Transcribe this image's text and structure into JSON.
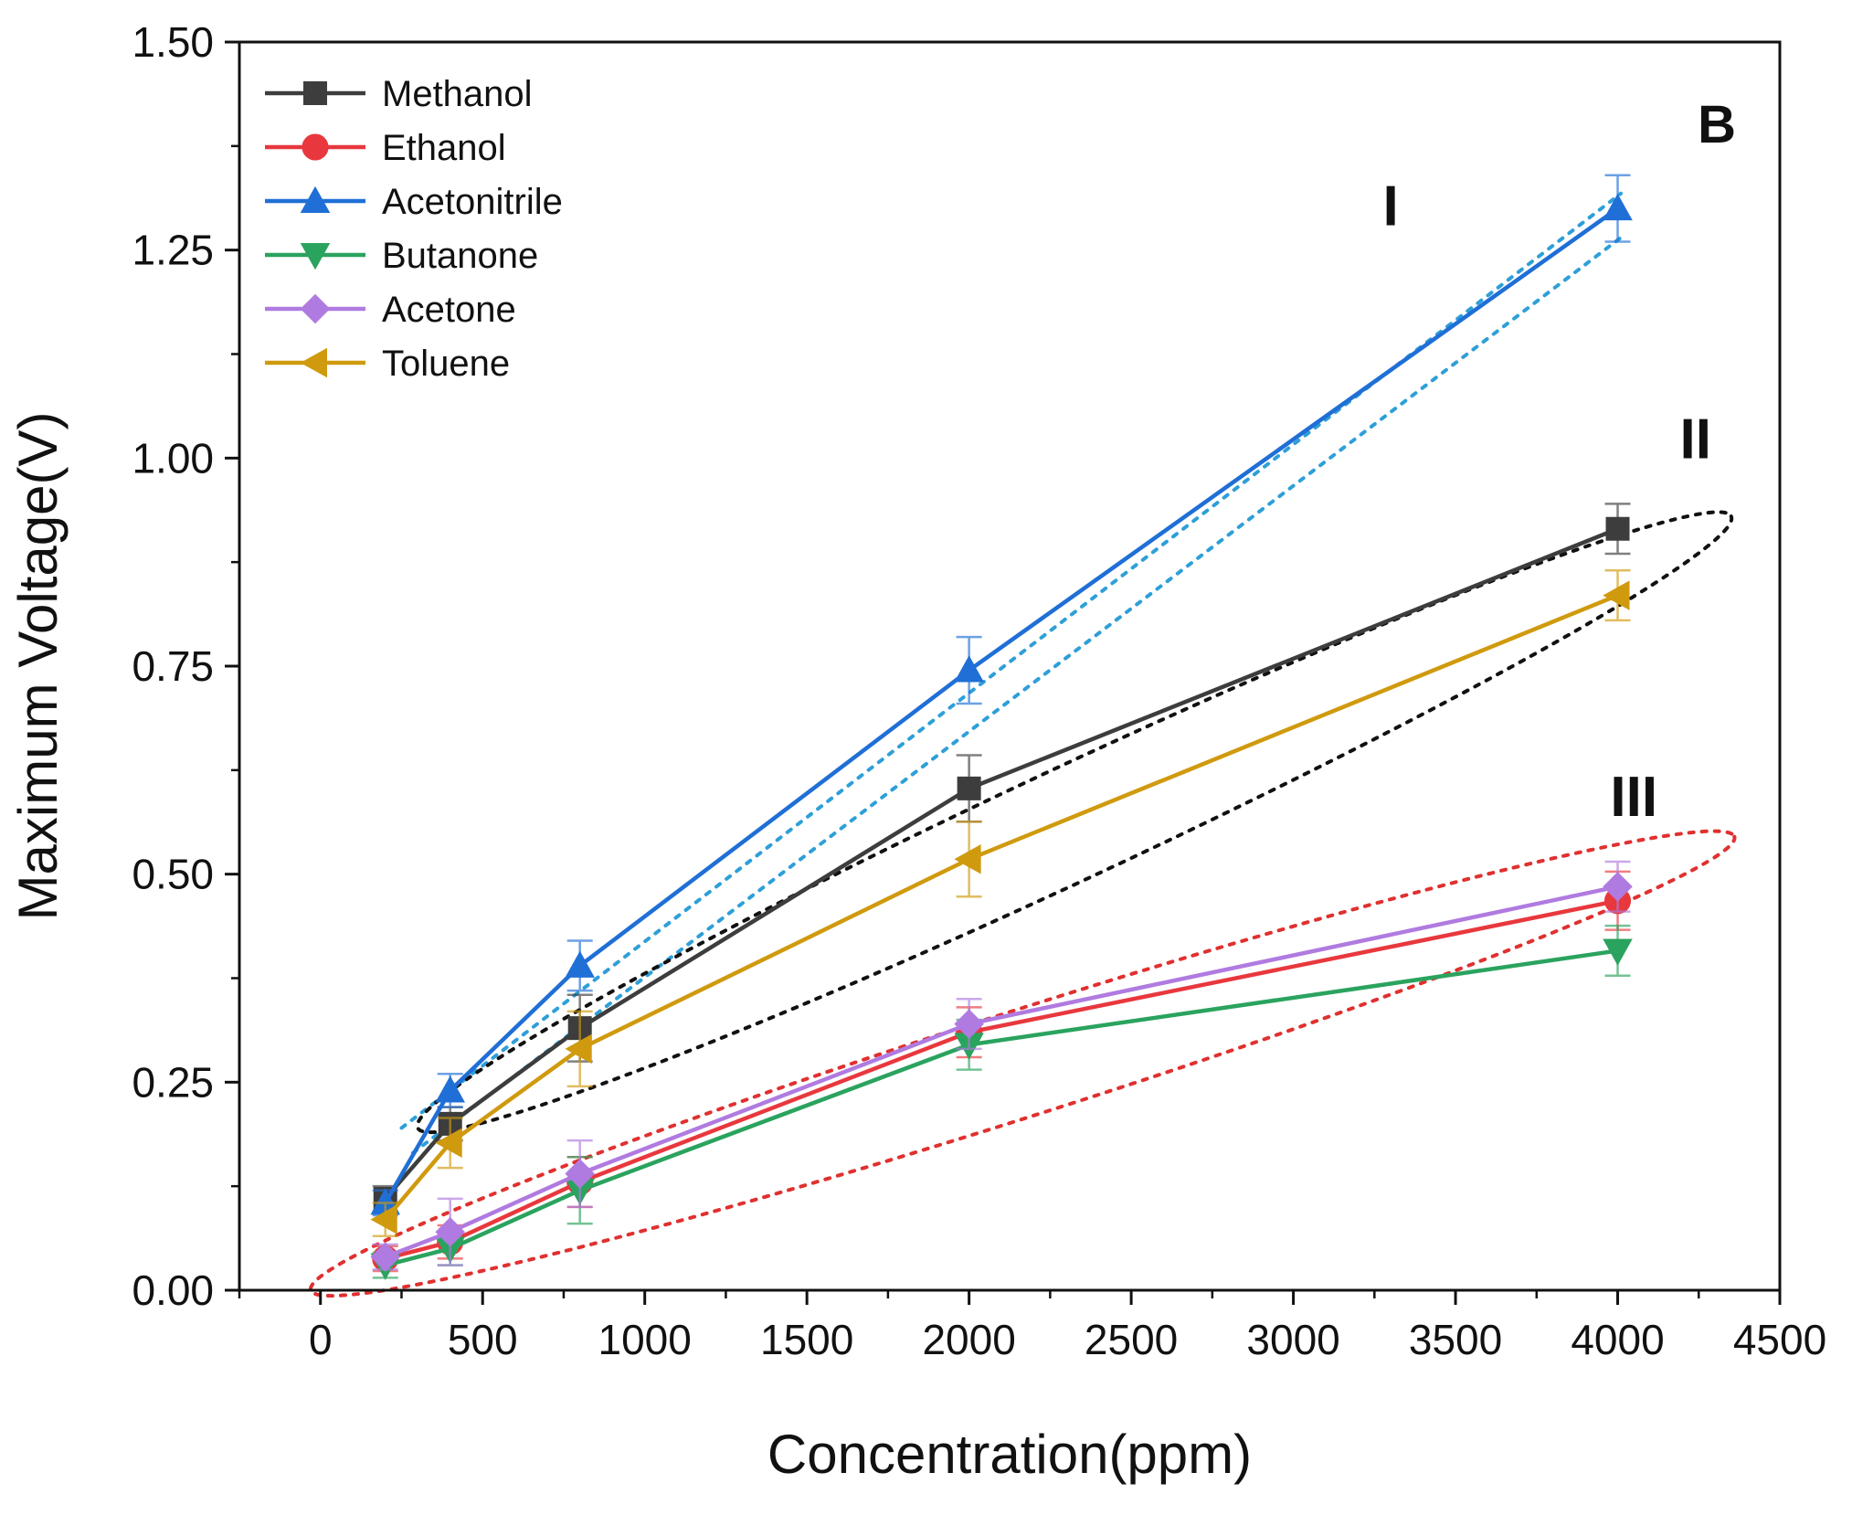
{
  "chart_data": {
    "type": "line",
    "panel_label": "B",
    "xlabel": "Concentration(ppm)",
    "ylabel": "Maximum Voltage(V)",
    "xlim": [
      -250,
      4500
    ],
    "ylim": [
      0,
      1.5
    ],
    "x_ticks": [
      0,
      500,
      1000,
      1500,
      2000,
      2500,
      3000,
      3500,
      4000,
      4500
    ],
    "x_tick_labels": [
      "0",
      "500",
      "1000",
      "1500",
      "2000",
      "2500",
      "3000",
      "3500",
      "4000",
      "4500"
    ],
    "y_ticks": [
      0,
      0.25,
      0.5,
      0.75,
      1.0,
      1.25,
      1.5
    ],
    "y_tick_labels": [
      "0.00",
      "0.25",
      "0.50",
      "0.75",
      "1.00",
      "1.25",
      "1.50"
    ],
    "x": [
      200,
      400,
      800,
      2000,
      4000
    ],
    "series": [
      {
        "name": "Methanol",
        "color": "#3d3d3d",
        "marker": "square",
        "values": [
          0.11,
          0.2,
          0.315,
          0.603,
          0.915
        ],
        "errors": [
          0.015,
          0.02,
          0.04,
          0.04,
          0.03
        ]
      },
      {
        "name": "Ethanol",
        "color": "#e8383d",
        "marker": "circle",
        "values": [
          0.038,
          0.058,
          0.13,
          0.31,
          0.468
        ],
        "errors": [
          0.015,
          0.02,
          0.03,
          0.03,
          0.035
        ]
      },
      {
        "name": "Acetonitrile",
        "color": "#1f6fd6",
        "marker": "triangle-up",
        "values": [
          0.105,
          0.24,
          0.39,
          0.745,
          1.3
        ],
        "errors": [
          0.015,
          0.02,
          0.03,
          0.04,
          0.04
        ]
      },
      {
        "name": "Butanone",
        "color": "#2aa35e",
        "marker": "triangle-down",
        "values": [
          0.03,
          0.05,
          0.12,
          0.295,
          0.408
        ],
        "errors": [
          0.015,
          0.02,
          0.04,
          0.03,
          0.03
        ]
      },
      {
        "name": "Acetone",
        "color": "#b07be0",
        "marker": "diamond",
        "values": [
          0.04,
          0.07,
          0.14,
          0.32,
          0.485
        ],
        "errors": [
          0.015,
          0.04,
          0.04,
          0.03,
          0.03
        ]
      },
      {
        "name": "Toluene",
        "color": "#d09a0e",
        "marker": "triangle-left",
        "values": [
          0.085,
          0.177,
          0.29,
          0.518,
          0.835
        ],
        "errors": [
          0.02,
          0.03,
          0.045,
          0.045,
          0.03
        ]
      }
    ],
    "annotations": [
      {
        "text": "I",
        "x": 3300,
        "y": 1.28,
        "group": "Acetonitrile",
        "color": "#2e9fd8"
      },
      {
        "text": "II",
        "x": 4240,
        "y": 1.0,
        "group": "Methanol, Toluene",
        "color": "#111111"
      },
      {
        "text": "III",
        "x": 4050,
        "y": 0.57,
        "group": "Ethanol, Butanone, Acetone",
        "color": "#e0302f"
      }
    ],
    "legend_position": "top-left",
    "grid": false
  }
}
